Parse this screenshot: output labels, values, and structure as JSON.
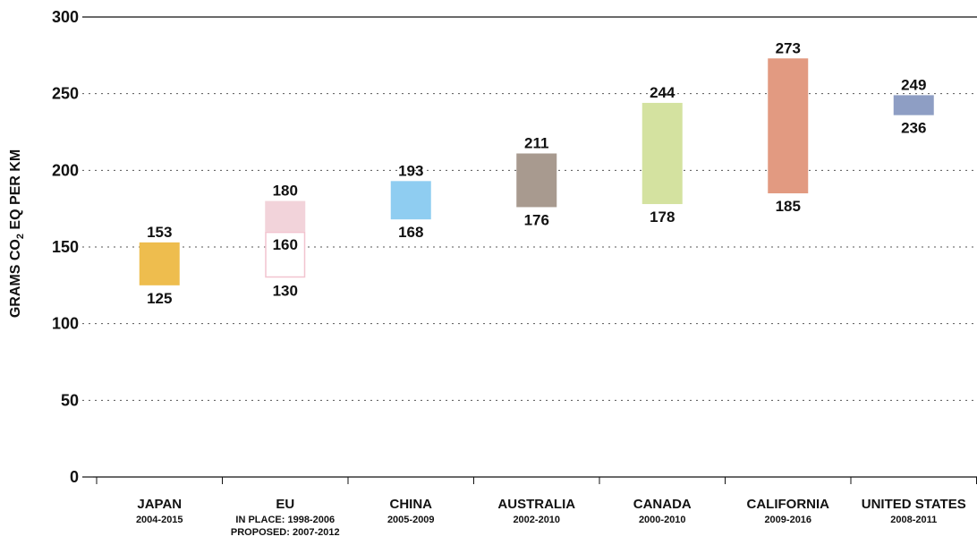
{
  "chart_data": {
    "type": "bar",
    "ylabel_parts": [
      "GRAMS CO",
      "2",
      " EQ PER KM"
    ],
    "ylim": [
      0,
      300
    ],
    "yticks": [
      "0",
      "50",
      "100",
      "150",
      "200",
      "250",
      "300"
    ],
    "grid": "dotted horizontal",
    "categories": [
      {
        "name": "JAPAN",
        "subtitle": [
          "2004-2015"
        ]
      },
      {
        "name": "EU",
        "subtitle": [
          "IN PLACE: 1998-2006",
          "PROPOSED: 2007-2012"
        ]
      },
      {
        "name": "CHINA",
        "subtitle": [
          "2005-2009"
        ]
      },
      {
        "name": "AUSTRALIA",
        "subtitle": [
          "2002-2010"
        ]
      },
      {
        "name": "CANADA",
        "subtitle": [
          "2000-2010"
        ]
      },
      {
        "name": "CALIFORNIA",
        "subtitle": [
          "2009-2016"
        ]
      },
      {
        "name": "UNITED STATES",
        "subtitle": [
          "2008-2011"
        ]
      }
    ],
    "ranges": [
      {
        "category": "JAPAN",
        "low": 125,
        "high": 153,
        "color": "#eebd4e",
        "outline": false
      },
      {
        "category": "EU",
        "low": 160,
        "high": 180,
        "color": "#f2d3da",
        "outline": false
      },
      {
        "category": "EU",
        "low": 130,
        "high": 160,
        "color": "#ffffff",
        "outline": true,
        "outline_color": "#f2c4cf"
      },
      {
        "category": "CHINA",
        "low": 168,
        "high": 193,
        "color": "#8fcdf1",
        "outline": false
      },
      {
        "category": "AUSTRALIA",
        "low": 176,
        "high": 211,
        "color": "#a89a8f",
        "outline": false
      },
      {
        "category": "CANADA",
        "low": 178,
        "high": 244,
        "color": "#d4e2a0",
        "outline": false
      },
      {
        "category": "CALIFORNIA",
        "low": 185,
        "high": 273,
        "color": "#e29a81",
        "outline": false
      },
      {
        "category": "UNITED STATES",
        "low": 236,
        "high": 249,
        "color": "#8e9ec4",
        "outline": false
      }
    ],
    "value_labels": [
      {
        "category": "JAPAN",
        "value": 153,
        "text": "153",
        "pos": "above"
      },
      {
        "category": "JAPAN",
        "value": 125,
        "text": "125",
        "pos": "below"
      },
      {
        "category": "EU",
        "value": 180,
        "text": "180",
        "pos": "above"
      },
      {
        "category": "EU",
        "value": 160,
        "text": "160",
        "pos": "below"
      },
      {
        "category": "EU",
        "value": 130,
        "text": "130",
        "pos": "below"
      },
      {
        "category": "CHINA",
        "value": 193,
        "text": "193",
        "pos": "above"
      },
      {
        "category": "CHINA",
        "value": 168,
        "text": "168",
        "pos": "below"
      },
      {
        "category": "AUSTRALIA",
        "value": 211,
        "text": "211",
        "pos": "above"
      },
      {
        "category": "AUSTRALIA",
        "value": 176,
        "text": "176",
        "pos": "below"
      },
      {
        "category": "CANADA",
        "value": 244,
        "text": "244",
        "pos": "above"
      },
      {
        "category": "CANADA",
        "value": 178,
        "text": "178",
        "pos": "below"
      },
      {
        "category": "CALIFORNIA",
        "value": 273,
        "text": "273",
        "pos": "above"
      },
      {
        "category": "CALIFORNIA",
        "value": 185,
        "text": "185",
        "pos": "below"
      },
      {
        "category": "UNITED STATES",
        "value": 249,
        "text": "249",
        "pos": "above"
      },
      {
        "category": "UNITED STATES",
        "value": 236,
        "text": "236",
        "pos": "below"
      }
    ]
  }
}
